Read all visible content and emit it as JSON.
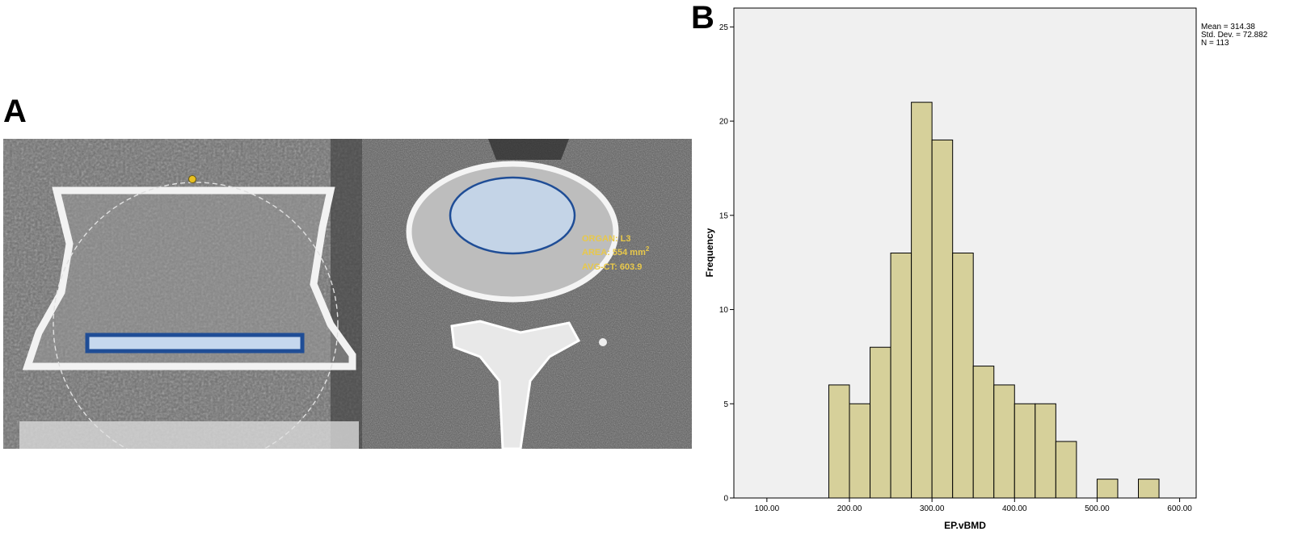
{
  "panels": {
    "a_label": "A",
    "b_label": "B"
  },
  "roi_annotation": {
    "organ": "ORGAN: L3",
    "area": "AREA: 554 mm",
    "area_sup": "2",
    "avg_ct": "AVG-CT: 603.9"
  },
  "colors": {
    "bar_fill": "#d6d09a",
    "plot_bg": "#f0f0f0",
    "roi_blue": "#2b4f8c",
    "roi_fill": "#c6d8ee",
    "annotation_yellow": "#e8c84a"
  },
  "chart_data": {
    "type": "bar",
    "xlabel": "EP.vBMD",
    "ylabel": "Frequency",
    "x_ticks": [
      "100.00",
      "200.00",
      "300.00",
      "400.00",
      "500.00",
      "600.00"
    ],
    "y_ticks": [
      "0",
      "5",
      "10",
      "15",
      "20",
      "25"
    ],
    "xlim": [
      60,
      620
    ],
    "ylim": [
      0,
      26
    ],
    "bin_width": 25,
    "bins": [
      {
        "start": 175,
        "count": 6
      },
      {
        "start": 200,
        "count": 5
      },
      {
        "start": 225,
        "count": 8
      },
      {
        "start": 250,
        "count": 13
      },
      {
        "start": 275,
        "count": 21
      },
      {
        "start": 300,
        "count": 19
      },
      {
        "start": 325,
        "count": 13
      },
      {
        "start": 350,
        "count": 7
      },
      {
        "start": 375,
        "count": 6
      },
      {
        "start": 400,
        "count": 5
      },
      {
        "start": 425,
        "count": 5
      },
      {
        "start": 450,
        "count": 3
      },
      {
        "start": 475,
        "count": 0
      },
      {
        "start": 500,
        "count": 1
      },
      {
        "start": 525,
        "count": 0
      },
      {
        "start": 550,
        "count": 1
      }
    ],
    "stats": {
      "mean": "Mean = 314.38",
      "sd": "Std. Dev. = 72.882",
      "n": "N = 113"
    },
    "grid": false,
    "legend_position": "top-right"
  }
}
